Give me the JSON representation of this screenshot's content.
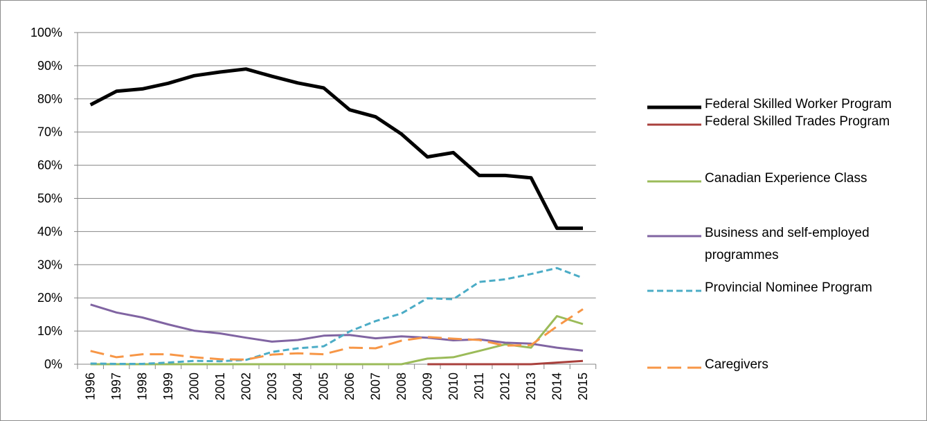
{
  "chart_data": {
    "type": "line",
    "categories": [
      "1996",
      "1997",
      "1998",
      "1999",
      "2000",
      "2001",
      "2002",
      "2003",
      "2004",
      "2005",
      "2006",
      "2007",
      "2008",
      "2009",
      "2010",
      "2011",
      "2012",
      "2013",
      "2014",
      "2015"
    ],
    "ylim": [
      0,
      100
    ],
    "yticks": [
      {
        "value": 0,
        "label": "0%"
      },
      {
        "value": 10,
        "label": "10%"
      },
      {
        "value": 20,
        "label": "20%"
      },
      {
        "value": 30,
        "label": "30%"
      },
      {
        "value": 40,
        "label": "40%"
      },
      {
        "value": 50,
        "label": "50%"
      },
      {
        "value": 60,
        "label": "60%"
      },
      {
        "value": 70,
        "label": "70%"
      },
      {
        "value": 80,
        "label": "80%"
      },
      {
        "value": 90,
        "label": "90%"
      },
      {
        "value": 100,
        "label": "100%"
      }
    ],
    "grid": true,
    "legend": "right",
    "series": [
      {
        "name": "Federal Skilled Worker Program",
        "color": "#000000",
        "dash": "solid",
        "width": 5,
        "values": [
          78.2,
          82.3,
          83,
          84.7,
          87,
          88.1,
          89,
          86.8,
          84.8,
          83.3,
          76.7,
          74.6,
          69.4,
          62.5,
          63.8,
          56.9,
          56.9,
          56.2,
          41,
          41
        ]
      },
      {
        "name": "Federal Skilled Trades Program",
        "color": "#a9403c",
        "dash": "solid",
        "width": 3,
        "values": [
          null,
          null,
          null,
          null,
          null,
          null,
          null,
          null,
          null,
          null,
          null,
          null,
          null,
          0,
          0,
          0,
          0,
          0,
          0.5,
          1
        ]
      },
      {
        "name": "Canadian Experience Class",
        "color": "#9bbb59",
        "dash": "solid",
        "width": 3,
        "values": [
          0,
          0,
          0,
          0,
          0,
          0,
          0,
          0,
          0,
          0,
          0,
          0,
          0,
          1.7,
          2.1,
          4,
          6,
          5,
          14.5,
          12.1
        ]
      },
      {
        "name": "Business and self-employed programmes",
        "color": "#8064a2",
        "dash": "solid",
        "width": 3,
        "values": [
          18,
          15.6,
          14.1,
          12,
          10.1,
          9.3,
          8,
          6.8,
          7.3,
          8.6,
          8.8,
          7.8,
          8.4,
          8,
          7.2,
          7.5,
          6.5,
          6.2,
          5,
          4.1
        ]
      },
      {
        "name": "Provincial Nominee Program",
        "color": "#4bacc6",
        "dash": "short",
        "width": 3,
        "values": [
          0.2,
          0.1,
          0.1,
          0.5,
          1,
          0.9,
          1.3,
          3.7,
          4.8,
          5.4,
          9.9,
          13,
          15.3,
          19.9,
          19.6,
          24.8,
          25.6,
          27.2,
          29,
          26
        ]
      },
      {
        "name": "Caregivers",
        "color": "#f79646",
        "dash": "long",
        "width": 3,
        "values": [
          4,
          2.1,
          3,
          3,
          2.1,
          1.5,
          1.4,
          2.9,
          3.3,
          3,
          5,
          4.8,
          7.1,
          8.2,
          7.7,
          7.3,
          5.6,
          5.8,
          11.4,
          16.6
        ]
      }
    ]
  }
}
